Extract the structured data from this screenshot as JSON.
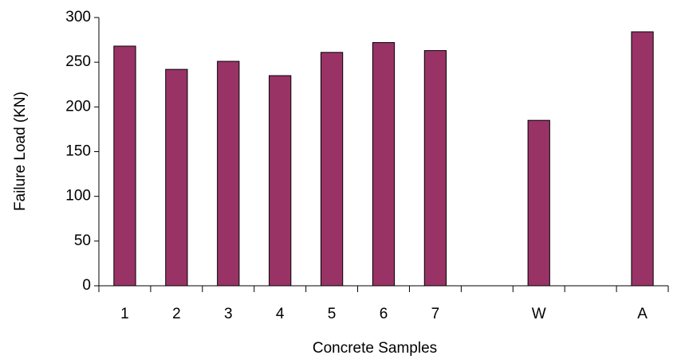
{
  "chart_data": {
    "type": "bar",
    "categories": [
      "1",
      "2",
      "3",
      "4",
      "5",
      "6",
      "7",
      null,
      "W",
      null,
      "A"
    ],
    "values": [
      268,
      242,
      251,
      235,
      261,
      272,
      263,
      null,
      185,
      null,
      284
    ],
    "color": "#993366",
    "xlabel": "Concrete Samples",
    "ylabel": "Failure Load (KN)",
    "ylim": [
      0,
      300
    ],
    "yticks": [
      0,
      50,
      100,
      150,
      200,
      250,
      300
    ],
    "grid": false
  }
}
